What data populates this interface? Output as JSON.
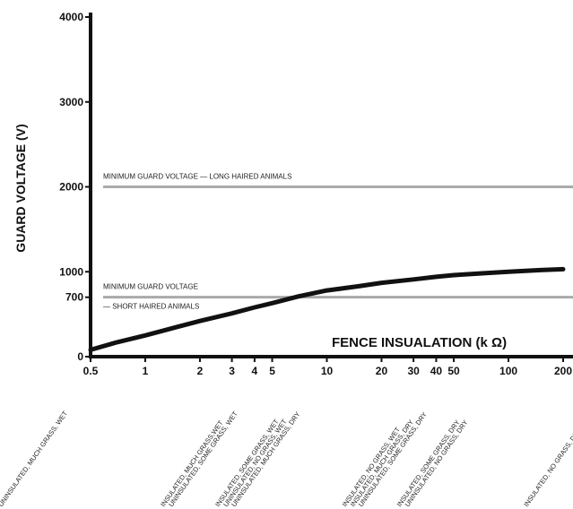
{
  "chart_data": {
    "type": "line",
    "title": "",
    "ylabel": "GUARD VOLTAGE (V)",
    "xlabel": "FENCE INSUALATION (k Ω)",
    "x_scale": "log",
    "xlim": [
      0.5,
      200
    ],
    "ylim": [
      0,
      4000
    ],
    "x_ticks": [
      {
        "value": 0.5,
        "label": "0.5"
      },
      {
        "value": 1,
        "label": "1"
      },
      {
        "value": 2,
        "label": "2"
      },
      {
        "value": 3,
        "label": "3"
      },
      {
        "value": 4,
        "label": "4"
      },
      {
        "value": 5,
        "label": "5"
      },
      {
        "value": 10,
        "label": "10"
      },
      {
        "value": 20,
        "label": "20"
      },
      {
        "value": 30,
        "label": "30"
      },
      {
        "value": 40,
        "label": "40"
      },
      {
        "value": 50,
        "label": "50"
      },
      {
        "value": 100,
        "label": "100"
      },
      {
        "value": 200,
        "label": "200"
      }
    ],
    "y_ticks": [
      {
        "value": 0,
        "label": "0"
      },
      {
        "value": 700,
        "label": "700"
      },
      {
        "value": 1000,
        "label": "1000"
      },
      {
        "value": 2000,
        "label": "2000"
      },
      {
        "value": 3000,
        "label": "3000"
      },
      {
        "value": 4000,
        "label": "4000"
      }
    ],
    "series": [
      {
        "x": [
          0.5,
          0.7,
          1,
          1.5,
          2,
          3,
          4,
          5,
          7,
          10,
          15,
          20,
          30,
          40,
          50,
          70,
          100,
          150,
          200
        ],
        "y": [
          80,
          170,
          250,
          350,
          420,
          510,
          580,
          630,
          710,
          780,
          830,
          870,
          910,
          940,
          960,
          980,
          1000,
          1020,
          1030
        ]
      }
    ],
    "reference_lines": [
      {
        "y": 2000,
        "label": "MINIMUM GUARD VOLTAGE — LONG HAIRED ANIMALS"
      },
      {
        "y": 700,
        "label": "MINIMUM GUARD VOLTAGE",
        "label2": "— SHORT HAIRED ANIMALS"
      }
    ],
    "conditions": [
      {
        "x": 0.5,
        "lines": [
          "UNINSULATED, MUCH GRASS, WET"
        ]
      },
      {
        "x": 2,
        "lines": [
          "INSULATED, MUCH GRASS,WET",
          "UNINSULATED, SOME GRASS, WET"
        ]
      },
      {
        "x": 4,
        "lines": [
          "INSULATED, SOME GRASS, WET",
          "UNINSULATED, NO GRASS, WET",
          "UNINSULATED, MUCH GRASS, DRY"
        ]
      },
      {
        "x": 20,
        "lines": [
          "INSULATED, NO GRASS, WET",
          "INSULATED, MUCH GRASS, DRY",
          "UNINSULATED, SOME GRASS, DRY"
        ]
      },
      {
        "x": 40,
        "lines": [
          "INSULATED, SOME GRASS, DRY",
          "UNINSULATED, NO GRASS, DRY"
        ]
      },
      {
        "x": 200,
        "lines": [
          "INSULATED, NO GRASS, DRY"
        ]
      }
    ],
    "grid": false,
    "legend": "none",
    "colors": {
      "curve": "#111111",
      "reference": "#aaaaaa",
      "axis": "#111111"
    }
  }
}
